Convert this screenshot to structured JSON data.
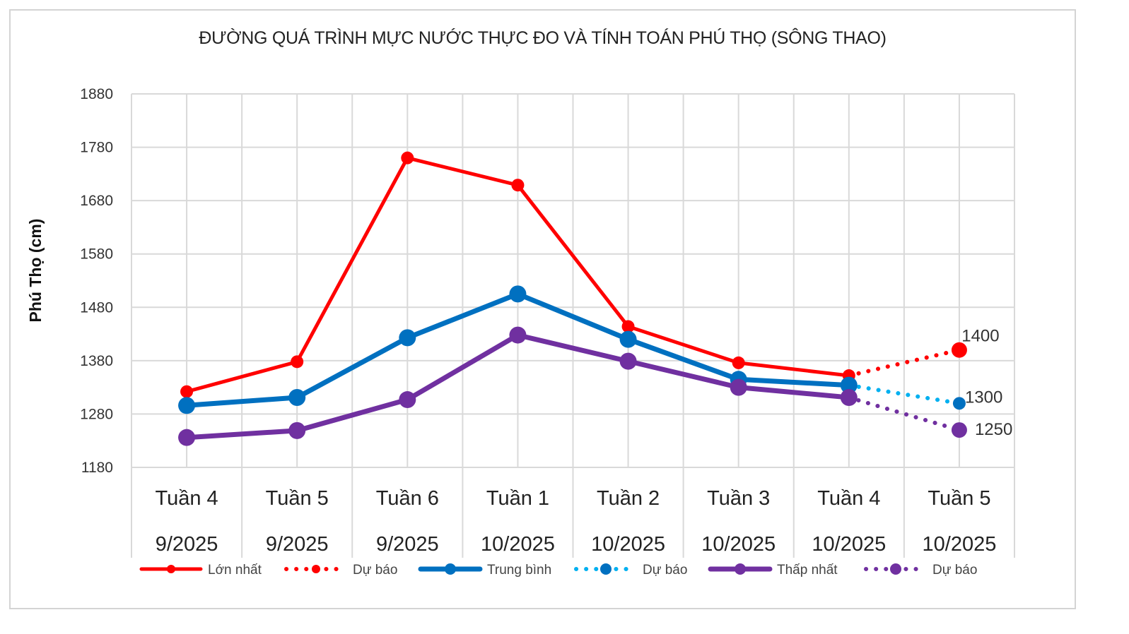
{
  "chart_data": {
    "type": "line",
    "title": "ĐƯỜNG QUÁ TRÌNH MỰC NƯỚC THỰC ĐO VÀ TÍNH TOÁN PHÚ THỌ (SÔNG THAO)",
    "ylabel": "Phú Thọ (cm)",
    "xlabel": "",
    "ylim": [
      1180,
      1880
    ],
    "yticks": [
      1180,
      1280,
      1380,
      1480,
      1580,
      1680,
      1780,
      1880
    ],
    "grid": true,
    "legend_position": "bottom",
    "categories": [
      {
        "week": "Tuần 4",
        "month": "9/2025"
      },
      {
        "week": "Tuần 5",
        "month": "9/2025"
      },
      {
        "week": "Tuần 6",
        "month": "9/2025"
      },
      {
        "week": "Tuần 1",
        "month": "10/2025"
      },
      {
        "week": "Tuần 2",
        "month": "10/2025"
      },
      {
        "week": "Tuần 3",
        "month": "10/2025"
      },
      {
        "week": "Tuần 4",
        "month": "10/2025"
      },
      {
        "week": "Tuần 5",
        "month": "10/2025"
      }
    ],
    "series": [
      {
        "name": "Lớn nhất",
        "color": "#ff0000",
        "style": "solid",
        "values": [
          1322,
          1378,
          1760,
          1709,
          1444,
          1376,
          1352,
          null
        ]
      },
      {
        "name": "Dự báo",
        "color": "#ff0000",
        "style": "dotted",
        "values": [
          null,
          null,
          null,
          null,
          null,
          null,
          1352,
          1400
        ],
        "labels": [
          null,
          null,
          null,
          null,
          null,
          null,
          null,
          "1400"
        ]
      },
      {
        "name": "Trung bình",
        "color": "#0070c0",
        "style": "solid",
        "values": [
          1296,
          1311,
          1423,
          1505,
          1420,
          1345,
          1334,
          null
        ]
      },
      {
        "name": "Dự báo",
        "color": "#00b0f0",
        "style": "dotted",
        "values": [
          null,
          null,
          null,
          null,
          null,
          null,
          1334,
          1300
        ],
        "labels": [
          null,
          null,
          null,
          null,
          null,
          null,
          null,
          "1300"
        ]
      },
      {
        "name": "Thấp nhất",
        "color": "#7030a0",
        "style": "solid",
        "values": [
          1236,
          1249,
          1307,
          1428,
          1379,
          1330,
          1311,
          null
        ]
      },
      {
        "name": "Dự báo",
        "color": "#7030a0",
        "style": "dotted",
        "values": [
          null,
          null,
          null,
          null,
          null,
          null,
          1311,
          1250
        ],
        "labels": [
          null,
          null,
          null,
          null,
          null,
          null,
          null,
          "1250"
        ]
      }
    ]
  }
}
